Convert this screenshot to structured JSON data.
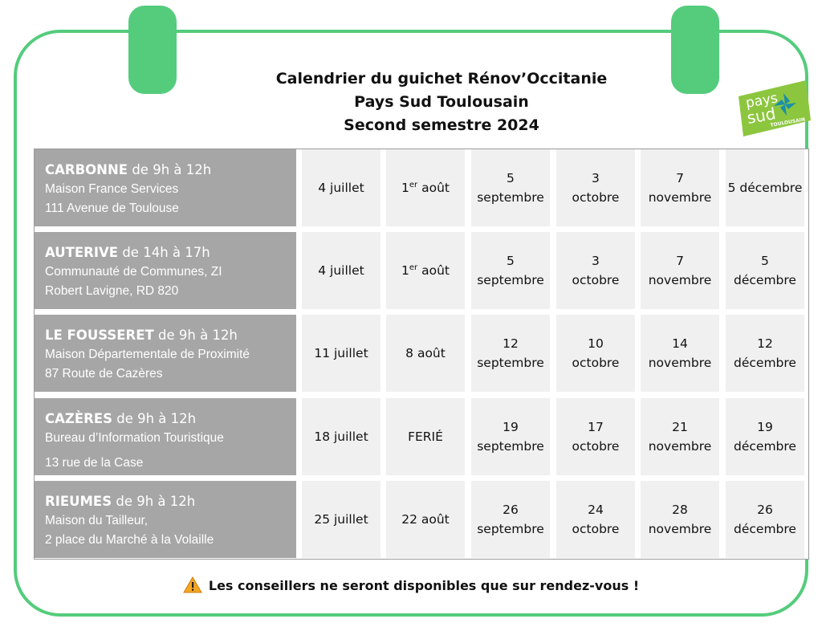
{
  "header": {
    "title_line1": "Calendrier du guichet Rénov’Occitanie",
    "title_line2": "Pays Sud Toulousain",
    "title_line3": "Second semestre 2024"
  },
  "logo": {
    "word1": "pays",
    "word2": "sud",
    "word3": "TOULOUSAIN",
    "color": "#8cc63f"
  },
  "colors": {
    "frame": "#54cc7c",
    "location_bg": "#a6a6a6",
    "date_bg": "#f0f0f0"
  },
  "rows": [
    {
      "town": "CARBONNE",
      "hours": "de 9h à 12h",
      "line1": "Maison France Services",
      "line2": "111 Avenue de Toulouse",
      "dates": [
        [
          "4 juillet"
        ],
        [
          "1",
          "er",
          " août"
        ],
        [
          "5",
          "septembre"
        ],
        [
          "3",
          "octobre"
        ],
        [
          "7",
          "novembre"
        ],
        [
          "5 décembre"
        ]
      ]
    },
    {
      "town": "AUTERIVE",
      "hours": "de 14h à 17h",
      "line1": "Communauté de Communes, ZI",
      "line2": "Robert Lavigne, RD 820",
      "dates": [
        [
          "4 juillet"
        ],
        [
          "1",
          "er",
          " août"
        ],
        [
          "5",
          "septembre"
        ],
        [
          "3",
          "octobre"
        ],
        [
          "7",
          "novembre"
        ],
        [
          "5",
          "décembre"
        ]
      ]
    },
    {
      "town": "LE FOUSSERET",
      "hours": "de 9h à 12h",
      "line1": "Maison Départementale de Proximité",
      "line2": "87 Route de Cazères",
      "dates": [
        [
          "11 juillet"
        ],
        [
          "8 août"
        ],
        [
          "12",
          "septembre"
        ],
        [
          "10",
          "octobre"
        ],
        [
          "14",
          "novembre"
        ],
        [
          "12",
          "décembre"
        ]
      ]
    },
    {
      "town": "CAZÈRES",
      "hours": "de 9h à 12h",
      "line1": "Bureau d’Information Touristique",
      "line2": "13 rue de la Case",
      "dates": [
        [
          "18 juillet"
        ],
        [
          "FERIÉ"
        ],
        [
          "19",
          "septembre"
        ],
        [
          "17",
          "octobre"
        ],
        [
          "21",
          "novembre"
        ],
        [
          "19",
          "décembre"
        ]
      ]
    },
    {
      "town": "RIEUMES",
      "hours": "de 9h à 12h",
      "line1": "Maison du Tailleur,",
      "line2": "2 place du Marché à la Volaille",
      "dates": [
        [
          "25 juillet"
        ],
        [
          "22 août"
        ],
        [
          "26",
          "septembre"
        ],
        [
          "24",
          "octobre"
        ],
        [
          "28",
          "novembre"
        ],
        [
          "26",
          "décembre"
        ]
      ]
    }
  ],
  "notice": {
    "icon": "warning-icon",
    "text": "Les conseillers ne seront disponibles que sur rendez-vous !"
  }
}
